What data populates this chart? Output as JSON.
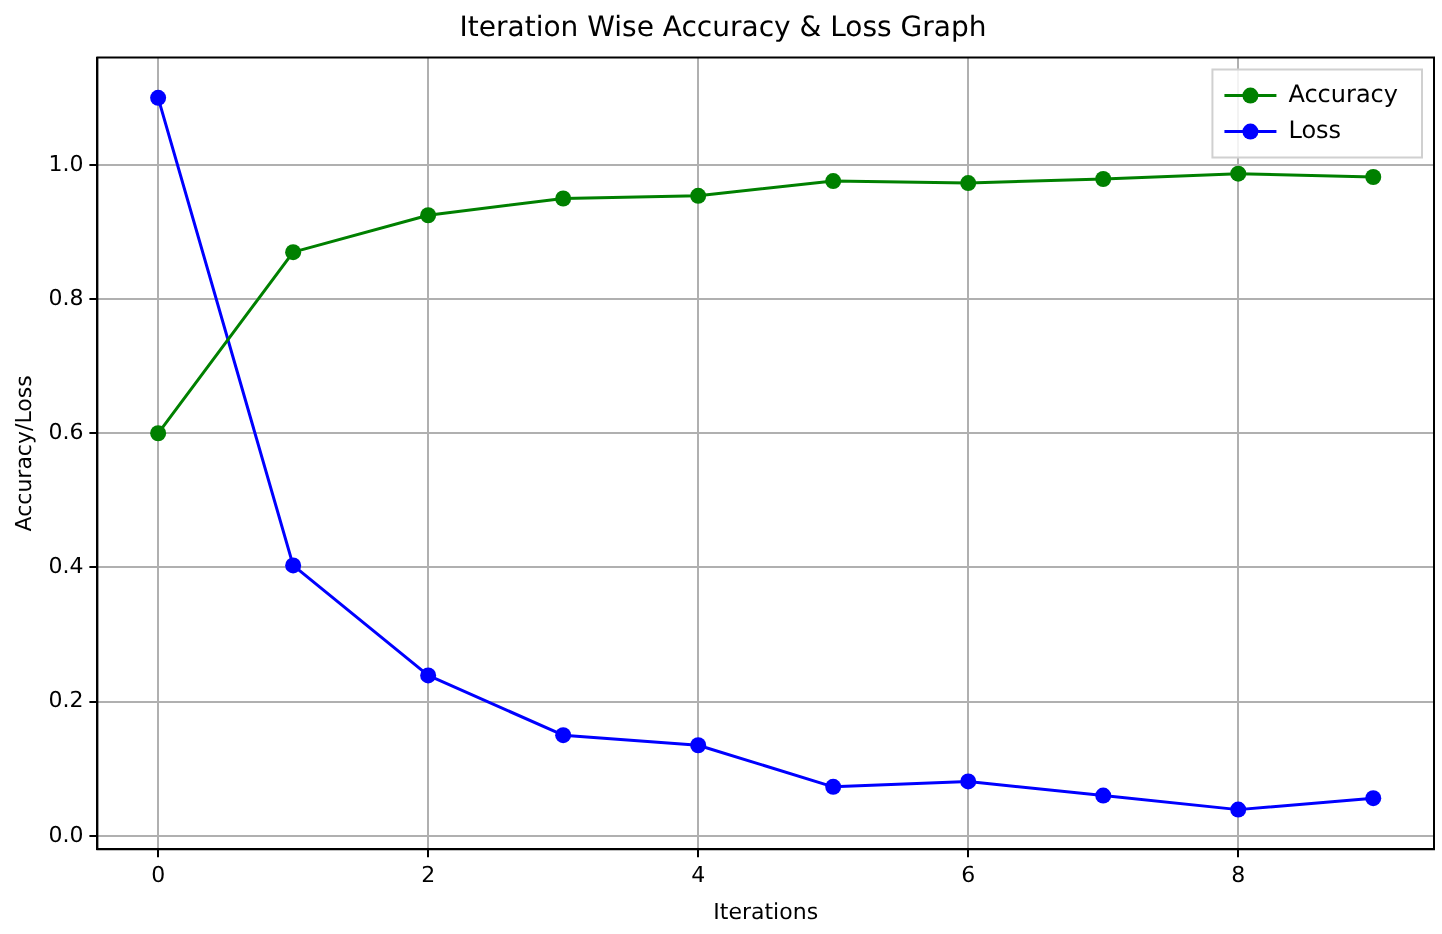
{
  "chart_data": {
    "type": "line",
    "title": "Iteration Wise Accuracy & Loss Graph",
    "xlabel": "Iterations",
    "ylabel": "Accuracy/Loss",
    "x": [
      0,
      1,
      2,
      3,
      4,
      5,
      6,
      7,
      8,
      9
    ],
    "series": [
      {
        "name": "Accuracy",
        "color": "#008000",
        "values": [
          0.6,
          0.87,
          0.925,
          0.95,
          0.954,
          0.976,
          0.973,
          0.979,
          0.987,
          0.982
        ]
      },
      {
        "name": "Loss",
        "color": "#0000ff",
        "values": [
          1.1,
          0.403,
          0.239,
          0.15,
          0.135,
          0.073,
          0.081,
          0.06,
          0.039,
          0.056
        ]
      }
    ],
    "xlim": [
      -0.45,
      9.45
    ],
    "xticks": [
      0,
      2,
      4,
      6,
      8
    ],
    "ylim": [
      -0.02,
      1.16
    ],
    "yticks": [
      {
        "value": 0,
        "label": "0.0"
      },
      0.2,
      0.4,
      0.6,
      0.8,
      {
        "value": 1,
        "label": "1.0"
      }
    ],
    "grid": true,
    "legend": "top right",
    "marker": "circle",
    "line_style": "solid"
  }
}
